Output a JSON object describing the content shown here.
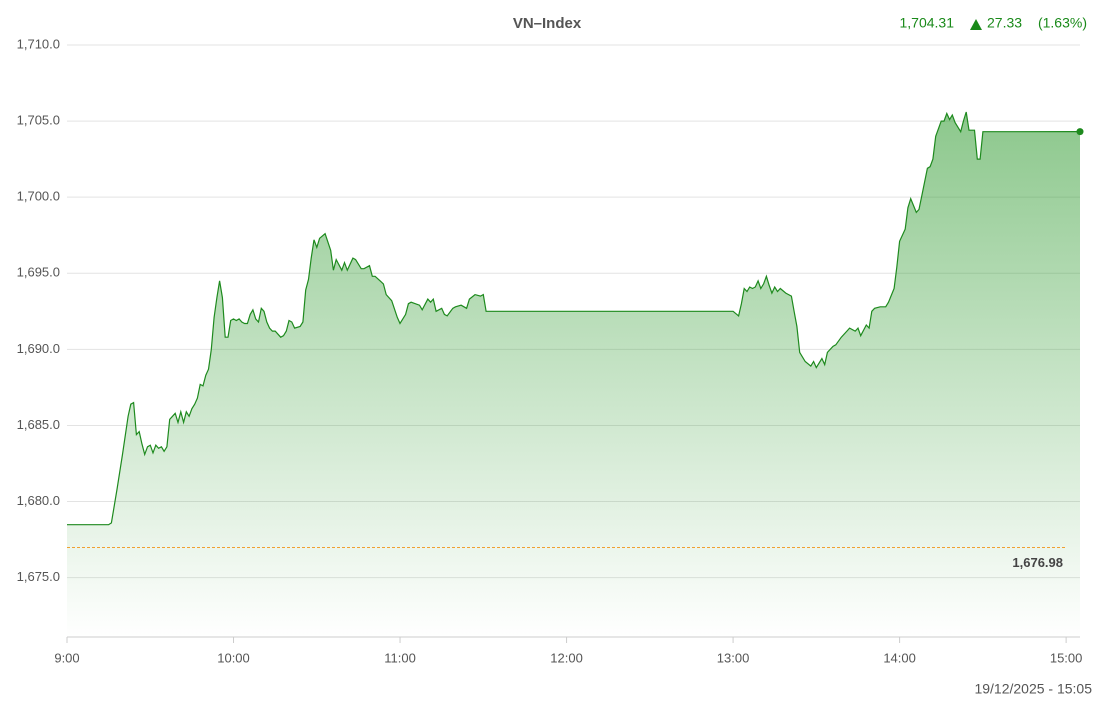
{
  "chart_data": {
    "type": "area",
    "title": "VN–Index",
    "header": {
      "price": "1,704.31",
      "change": "27.33",
      "change_pct": "(1.63%)"
    },
    "timestamp": "19/12/2025 - 15:05",
    "color": "#1e8a1e",
    "reference_line": {
      "value": 1676.98,
      "label": "1,676.98",
      "color": "#f0a030"
    },
    "xlim": [
      "9:00",
      "15:05"
    ],
    "xticks": [
      "9:00",
      "10:00",
      "11:00",
      "12:00",
      "13:00",
      "14:00",
      "15:00"
    ],
    "ylim": [
      1671.1,
      1710
    ],
    "yticks": [
      {
        "value": 1675,
        "label": "1,675.0"
      },
      {
        "value": 1680,
        "label": "1,680.0"
      },
      {
        "value": 1685,
        "label": "1,685.0"
      },
      {
        "value": 1690,
        "label": "1,690.0"
      },
      {
        "value": 1695,
        "label": "1,695.0"
      },
      {
        "value": 1700,
        "label": "1,700.0"
      },
      {
        "value": 1705,
        "label": "1,705.0"
      },
      {
        "value": 1710,
        "label": "1,710.0"
      }
    ],
    "grid": true,
    "x": [
      "9:00",
      "9:15",
      "9:16",
      "9:18",
      "9:20",
      "9:22",
      "9:23",
      "9:24",
      "9:25",
      "9:26",
      "9:27",
      "9:28",
      "9:29",
      "9:30",
      "9:31",
      "9:32",
      "9:33",
      "9:34",
      "9:35",
      "9:36",
      "9:37",
      "9:38",
      "9:39",
      "9:40",
      "9:41",
      "9:42",
      "9:43",
      "9:44",
      "9:45",
      "9:46",
      "9:47",
      "9:48",
      "9:49",
      "9:50",
      "9:51",
      "9:52",
      "9:53",
      "9:54",
      "9:55",
      "9:56",
      "9:57",
      "9:58",
      "9:59",
      "10:00",
      "10:01",
      "10:02",
      "10:03",
      "10:04",
      "10:05",
      "10:06",
      "10:07",
      "10:08",
      "10:09",
      "10:10",
      "10:11",
      "10:12",
      "10:13",
      "10:14",
      "10:15",
      "10:17",
      "10:18",
      "10:19",
      "10:20",
      "10:21",
      "10:22",
      "10:24",
      "10:25",
      "10:26",
      "10:27",
      "10:28",
      "10:29",
      "10:30",
      "10:31",
      "10:33",
      "10:35",
      "10:36",
      "10:37",
      "10:39",
      "10:40",
      "10:41",
      "10:43",
      "10:44",
      "10:46",
      "10:47",
      "10:49",
      "10:50",
      "10:51",
      "10:54",
      "10:55",
      "10:57",
      "10:59",
      "11:00",
      "11:02",
      "11:03",
      "11:04",
      "11:07",
      "11:08",
      "11:10",
      "11:11",
      "11:12",
      "11:13",
      "11:15",
      "11:16",
      "11:17",
      "11:19",
      "11:20",
      "11:22",
      "11:24",
      "11:25",
      "11:27",
      "11:29",
      "11:30",
      "11:31",
      "13:00",
      "13:02",
      "13:03",
      "13:04",
      "13:05",
      "13:06",
      "13:07",
      "13:08",
      "13:09",
      "13:10",
      "13:11",
      "13:12",
      "13:13",
      "13:14",
      "13:15",
      "13:16",
      "13:17",
      "13:19",
      "13:21",
      "13:22",
      "13:23",
      "13:24",
      "13:26",
      "13:28",
      "13:29",
      "13:30",
      "13:32",
      "13:33",
      "13:34",
      "13:36",
      "13:37",
      "13:39",
      "13:41",
      "13:42",
      "13:44",
      "13:45",
      "13:46",
      "13:48",
      "13:49",
      "13:50",
      "13:51",
      "13:53",
      "13:55",
      "13:56",
      "13:58",
      "13:59",
      "14:00",
      "14:02",
      "14:03",
      "14:04",
      "14:06",
      "14:07",
      "14:08",
      "14:10",
      "14:11",
      "14:12",
      "14:13",
      "14:15",
      "14:16",
      "14:17",
      "14:18",
      "14:19",
      "14:20",
      "14:22",
      "14:23",
      "14:24",
      "14:25",
      "14:27",
      "14:28",
      "14:29",
      "14:30",
      "15:05"
    ],
    "series": [
      {
        "name": "VN–Index",
        "values": [
          1678.48,
          1678.48,
          1678.6,
          1680.8,
          1683.1,
          1685.6,
          1686.4,
          1686.5,
          1684.4,
          1684.6,
          1683.8,
          1683.1,
          1683.6,
          1683.7,
          1683.2,
          1683.7,
          1683.5,
          1683.6,
          1683.3,
          1683.6,
          1685.4,
          1685.6,
          1685.8,
          1685.2,
          1685.9,
          1685.2,
          1685.9,
          1685.6,
          1686.1,
          1686.4,
          1686.8,
          1687.7,
          1687.6,
          1688.3,
          1688.7,
          1690.0,
          1692.1,
          1693.4,
          1694.5,
          1693.4,
          1690.8,
          1690.8,
          1691.9,
          1692.0,
          1691.9,
          1692.0,
          1691.8,
          1691.7,
          1691.7,
          1692.3,
          1692.6,
          1692.0,
          1691.8,
          1692.7,
          1692.5,
          1691.8,
          1691.4,
          1691.2,
          1691.2,
          1690.8,
          1690.9,
          1691.2,
          1691.9,
          1691.8,
          1691.4,
          1691.5,
          1691.8,
          1693.9,
          1694.6,
          1696.0,
          1697.2,
          1696.7,
          1697.3,
          1697.6,
          1696.5,
          1695.2,
          1695.9,
          1695.2,
          1695.7,
          1695.2,
          1696.0,
          1695.9,
          1695.3,
          1695.3,
          1695.5,
          1694.8,
          1694.8,
          1694.3,
          1693.6,
          1693.2,
          1692.1,
          1691.7,
          1692.3,
          1693.0,
          1693.1,
          1692.9,
          1692.6,
          1693.3,
          1693.1,
          1693.3,
          1692.5,
          1692.7,
          1692.3,
          1692.2,
          1692.7,
          1692.8,
          1692.9,
          1692.7,
          1693.3,
          1693.6,
          1693.5,
          1693.6,
          1692.5,
          1692.5,
          1692.2,
          1693.0,
          1694.0,
          1693.8,
          1694.1,
          1694.0,
          1694.1,
          1694.5,
          1694.0,
          1694.3,
          1694.8,
          1694.2,
          1693.7,
          1694.1,
          1693.8,
          1694.0,
          1693.7,
          1693.5,
          1692.5,
          1691.5,
          1689.8,
          1689.2,
          1688.9,
          1689.2,
          1688.8,
          1689.4,
          1689.0,
          1689.8,
          1690.2,
          1690.3,
          1690.8,
          1691.2,
          1691.4,
          1691.2,
          1691.4,
          1690.9,
          1691.6,
          1691.4,
          1692.5,
          1692.7,
          1692.8,
          1692.8,
          1693.1,
          1694.0,
          1695.4,
          1697.1,
          1697.9,
          1699.3,
          1699.9,
          1699.0,
          1699.2,
          1700.1,
          1701.9,
          1702.0,
          1702.5,
          1704.0,
          1705.0,
          1705.0,
          1705.5,
          1705.1,
          1705.4,
          1704.9,
          1704.3,
          1705.0,
          1705.6,
          1704.4,
          1704.4,
          1702.5,
          1702.5,
          1704.3,
          1704.31
        ]
      }
    ]
  }
}
